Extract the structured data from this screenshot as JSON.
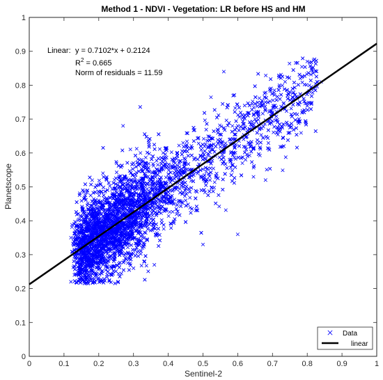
{
  "chart_data": {
    "type": "scatter",
    "title": "Method 1 - NDVI - Vegetation: LR before HS and HM",
    "xlabel": "Sentinel-2",
    "ylabel": "Planetscope",
    "xlim": [
      0,
      1
    ],
    "ylim": [
      0,
      1
    ],
    "xticks": [
      "0",
      "0.1",
      "0.2",
      "0.3",
      "0.4",
      "0.5",
      "0.6",
      "0.7",
      "0.8",
      "0.9",
      "1"
    ],
    "yticks": [
      "0",
      "0.1",
      "0.2",
      "0.3",
      "0.4",
      "0.5",
      "0.6",
      "0.7",
      "0.8",
      "0.9",
      "1"
    ],
    "grid": false,
    "legend_position": "bottom-right",
    "annotation": {
      "fit_label": "Linear:",
      "equation": "y = 0.7102*x + 0.2124",
      "r2_prefix": "R",
      "r2_sup": "2",
      "r2_value": " = 0.665",
      "norm": "Norm of residuals = 11.59"
    },
    "fit": {
      "slope": 0.7102,
      "intercept": 0.2124,
      "color": "#000000"
    },
    "series": [
      {
        "name": "Data",
        "marker": "x",
        "color": "#0000ff",
        "x_range": [
          0.11,
          0.84
        ],
        "approx_center": [
          0.33,
          0.44
        ],
        "points": [
          [
            0.12,
            0.22
          ],
          [
            0.13,
            0.24
          ],
          [
            0.15,
            0.27
          ],
          [
            0.18,
            0.3
          ],
          [
            0.12,
            0.35
          ],
          [
            0.2,
            0.31
          ],
          [
            0.22,
            0.4
          ],
          [
            0.25,
            0.36
          ],
          [
            0.28,
            0.46
          ],
          [
            0.27,
            0.68
          ],
          [
            0.3,
            0.41
          ],
          [
            0.33,
            0.44
          ],
          [
            0.35,
            0.52
          ],
          [
            0.32,
            0.6
          ],
          [
            0.38,
            0.47
          ],
          [
            0.4,
            0.5
          ],
          [
            0.42,
            0.57
          ],
          [
            0.45,
            0.46
          ],
          [
            0.48,
            0.55
          ],
          [
            0.5,
            0.6
          ],
          [
            0.52,
            0.52
          ],
          [
            0.55,
            0.63
          ],
          [
            0.58,
            0.6
          ],
          [
            0.6,
            0.68
          ],
          [
            0.62,
            0.74
          ],
          [
            0.65,
            0.7
          ],
          [
            0.68,
            0.75
          ],
          [
            0.7,
            0.72
          ],
          [
            0.72,
            0.8
          ],
          [
            0.75,
            0.78
          ],
          [
            0.78,
            0.82
          ],
          [
            0.8,
            0.87
          ],
          [
            0.82,
            0.79
          ],
          [
            0.84,
            0.81
          ],
          [
            0.56,
            0.84
          ],
          [
            0.6,
            0.36
          ],
          [
            0.5,
            0.33
          ],
          [
            0.36,
            0.27
          ],
          [
            0.3,
            0.26
          ],
          [
            0.68,
            0.52
          ]
        ]
      }
    ],
    "legend": [
      {
        "label": "Data",
        "symbol": "x",
        "color": "#0000ff"
      },
      {
        "label": "linear",
        "symbol": "line",
        "color": "#000000"
      }
    ]
  }
}
